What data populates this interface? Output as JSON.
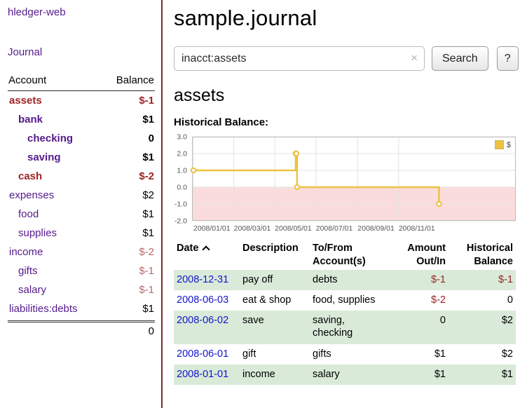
{
  "sidebar": {
    "brand": "hledger-web",
    "nav": {
      "journal": "Journal"
    },
    "table": {
      "account_header": "Account",
      "balance_header": "Balance",
      "total": "0"
    },
    "accounts": [
      {
        "name": "assets",
        "balance": "$-1",
        "indent": 0,
        "bold": true,
        "name_tone": "negative",
        "balance_tone": "negative"
      },
      {
        "name": "bank",
        "balance": "$1",
        "indent": 1,
        "bold": true
      },
      {
        "name": "checking",
        "balance": "0",
        "indent": 2,
        "bold": true
      },
      {
        "name": "saving",
        "balance": "$1",
        "indent": 2,
        "bold": true
      },
      {
        "name": "cash",
        "balance": "$-2",
        "indent": 1,
        "bold": true,
        "name_tone": "negative",
        "balance_tone": "negative"
      },
      {
        "name": "expenses",
        "balance": "$2",
        "indent": 0
      },
      {
        "name": "food",
        "balance": "$1",
        "indent": 1
      },
      {
        "name": "supplies",
        "balance": "$1",
        "indent": 1
      },
      {
        "name": "income",
        "balance": "$-2",
        "indent": 0,
        "balance_tone": "negative-soft"
      },
      {
        "name": "gifts",
        "balance": "$-1",
        "indent": 1,
        "balance_tone": "negative-soft"
      },
      {
        "name": "salary",
        "balance": "$-1",
        "indent": 1,
        "balance_tone": "negative-soft"
      },
      {
        "name": "liabilities:debts",
        "balance": "$1",
        "indent": 0
      }
    ]
  },
  "header": {
    "title": "sample.journal"
  },
  "search": {
    "value": "inacct:assets",
    "clear_icon": "×",
    "search_button": "Search",
    "help_button": "?"
  },
  "account_view": {
    "heading": "assets",
    "chart_title": "Historical Balance:"
  },
  "chart_data": {
    "type": "line",
    "style": "step",
    "title": "Historical Balance of assets",
    "legend_position": "top-right",
    "legend": [
      {
        "label": "$",
        "color": "#edc240"
      }
    ],
    "series_color": "#edc240",
    "negative_region_fill": "#fbdcdc",
    "grid": true,
    "ylim": [
      -2,
      3
    ],
    "x_domain_days": 477,
    "y_ticks": [
      {
        "label": "3.0",
        "value": 3
      },
      {
        "label": "2.0",
        "value": 2
      },
      {
        "label": "1.0",
        "value": 1
      },
      {
        "label": "0.0",
        "value": 0
      },
      {
        "label": "-1.0",
        "value": -1
      },
      {
        "label": "-2.0",
        "value": -2
      }
    ],
    "x_ticks": [
      {
        "label": "2008/01/01",
        "day": 0
      },
      {
        "label": "2008/03/01",
        "day": 60
      },
      {
        "label": "2008/05/01",
        "day": 121
      },
      {
        "label": "2008/07/01",
        "day": 182
      },
      {
        "label": "2008/09/01",
        "day": 244
      },
      {
        "label": "2008/11/01",
        "day": 305
      }
    ],
    "series": [
      {
        "name": "$",
        "points": [
          {
            "date": "2008-01-01",
            "day": 0,
            "value": 1
          },
          {
            "date": "2008-06-01",
            "day": 152,
            "value": 2
          },
          {
            "date": "2008-06-02",
            "day": 153,
            "value": 2
          },
          {
            "date": "2008-06-03",
            "day": 154,
            "value": 0
          },
          {
            "date": "2008-12-31",
            "day": 365,
            "value": -1
          }
        ]
      }
    ]
  },
  "register": {
    "headers": {
      "date": "Date",
      "sort": "ascending",
      "description": "Description",
      "account_l1": "To/From",
      "account_l2": "Account(s)",
      "amount_l1": "Amount",
      "amount_l2": "Out/In",
      "balance_l1": "Historical",
      "balance_l2": "Balance"
    },
    "rows": [
      {
        "date": "2008-12-31",
        "description": "pay off",
        "accounts": "debts",
        "amount": "$-1",
        "amount_tone": "negative",
        "balance": "$-1",
        "balance_tone": "negative",
        "shaded": true
      },
      {
        "date": "2008-06-03",
        "description": "eat & shop",
        "accounts": "food, supplies",
        "amount": "$-2",
        "amount_tone": "negative",
        "balance": "0",
        "shaded": false
      },
      {
        "date": "2008-06-02",
        "description": "save",
        "accounts": "saving, checking",
        "amount": "0",
        "balance": "$2",
        "shaded": true
      },
      {
        "date": "2008-06-01",
        "description": "gift",
        "accounts": "gifts",
        "amount": "$1",
        "balance": "$2",
        "shaded": false
      },
      {
        "date": "2008-01-01",
        "description": "income",
        "accounts": "salary",
        "amount": "$1",
        "balance": "$1",
        "shaded": true
      }
    ]
  },
  "colors": {
    "link_purple": "#551a8b",
    "link_blue": "#1414cc",
    "negative": "#9d2424",
    "negative_soft": "#bb6a6a",
    "row_green": "#d9ead9",
    "sidebar_divider": "#7c2a2a",
    "series_gold": "#edc240",
    "negative_region": "#fbdcdc"
  }
}
